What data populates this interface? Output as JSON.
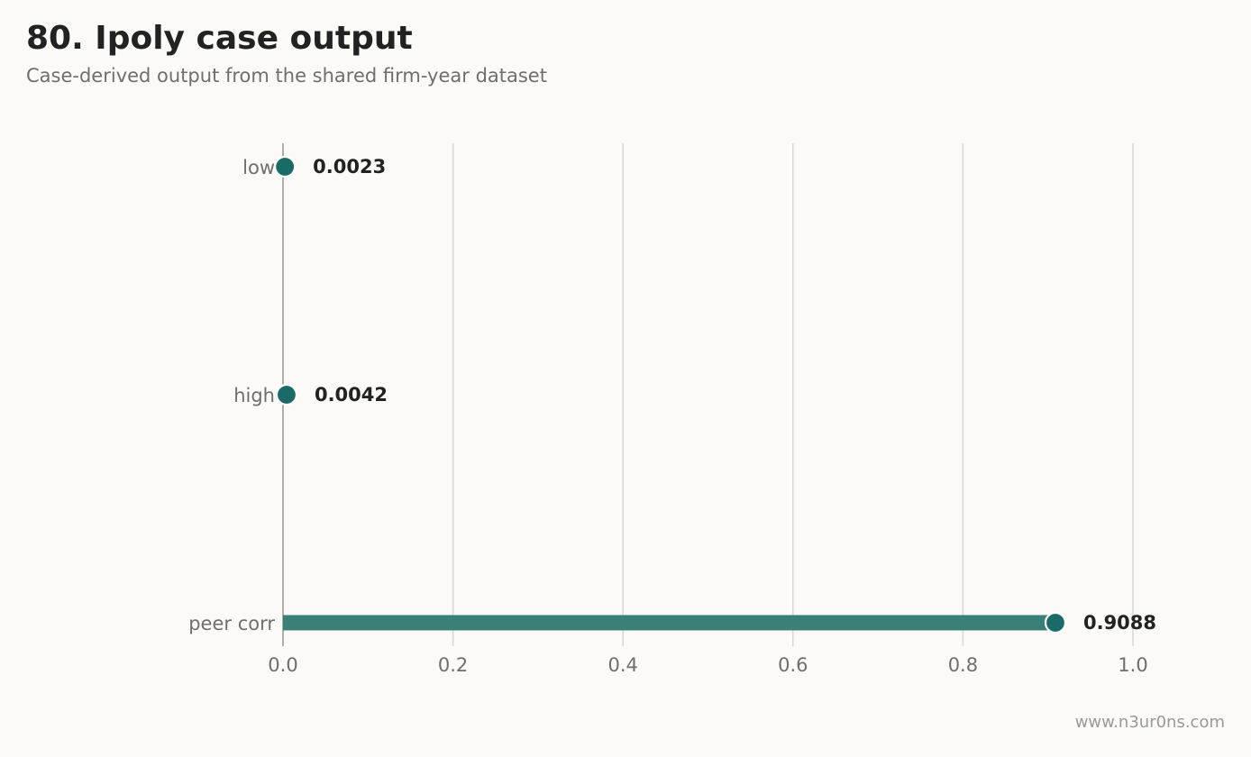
{
  "title": "80. Ipoly case output",
  "subtitle": "Case-derived output from the shared firm-year dataset",
  "watermark": "www.n3ur0ns.com",
  "colors": {
    "bar": "#3a8079",
    "dot": "#1a6b68",
    "grid": "#d9d9d4",
    "axis": "#9a9a95"
  },
  "chart_data": {
    "type": "bar",
    "orientation": "horizontal",
    "categories": [
      "low",
      "high",
      "peer corr"
    ],
    "values": [
      0.0023,
      0.0042,
      0.9088
    ],
    "value_labels": [
      "0.0023",
      "0.0042",
      "0.9088"
    ],
    "xlim": [
      0,
      1.0
    ],
    "xticks": [
      0.0,
      0.2,
      0.4,
      0.6,
      0.8,
      1.0
    ],
    "xtick_labels": [
      "0.0",
      "0.2",
      "0.4",
      "0.6",
      "0.8",
      "1.0"
    ],
    "grid": "vertical",
    "xlabel": "",
    "ylabel": ""
  }
}
